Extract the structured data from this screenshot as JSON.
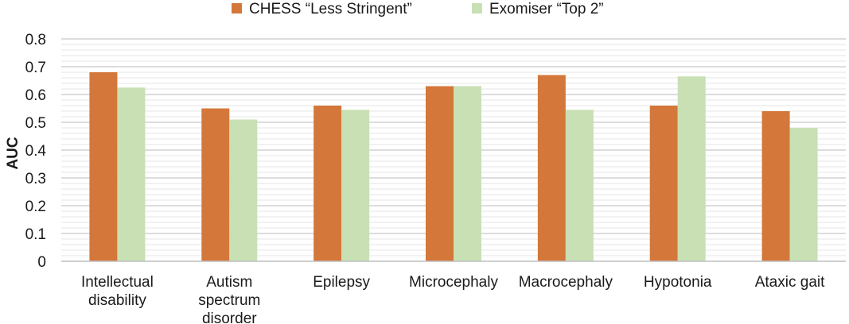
{
  "chart_data": {
    "type": "bar",
    "title": "",
    "xlabel": "",
    "ylabel": "AUC",
    "ylim": [
      0,
      0.8
    ],
    "yticks": [
      "0",
      "0.1",
      "0.2",
      "0.3",
      "0.4",
      "0.5",
      "0.6",
      "0.7",
      "0.8"
    ],
    "grid": true,
    "legend_position": "top",
    "categories": [
      [
        "Intellectual",
        "disability"
      ],
      [
        "Autism",
        "spectrum",
        "disorder"
      ],
      [
        "Epilepsy"
      ],
      [
        "Microcephaly"
      ],
      [
        "Macrocephaly"
      ],
      [
        "Hypotonia"
      ],
      [
        "Ataxic gait"
      ]
    ],
    "series": [
      {
        "name": "CHESS “Less Stringent”",
        "color": "#d4773a",
        "values": [
          0.68,
          0.55,
          0.56,
          0.63,
          0.67,
          0.56,
          0.54
        ]
      },
      {
        "name": "Exomiser “Top 2”",
        "color": "#c8e0b4",
        "values": [
          0.625,
          0.51,
          0.545,
          0.63,
          0.545,
          0.665,
          0.48
        ]
      }
    ]
  }
}
